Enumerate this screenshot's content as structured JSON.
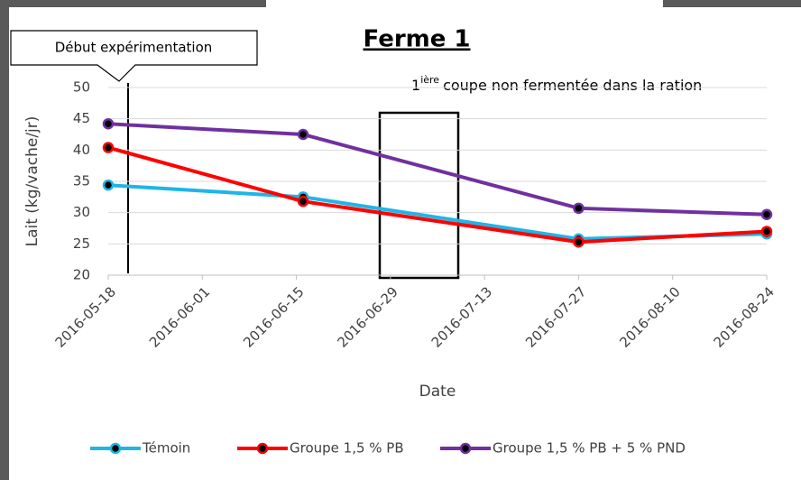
{
  "chart_data": {
    "type": "line",
    "title": "Ferme 1",
    "xlabel": "Date",
    "ylabel": "Lait (kg/vache/jr)",
    "annotations": {
      "start": "Début expérimentation",
      "cut_prefix": "1",
      "cut_superscript": "ière",
      "cut_text": "coupe non fermentée  dans la ration"
    },
    "x": [
      "2016-05-18",
      "2016-06-16",
      "2016-07-27",
      "2016-08-24"
    ],
    "xlim": [
      "2016-05-18",
      "2016-08-24"
    ],
    "xticks": [
      "2016-05-18",
      "2016-06-01",
      "2016-06-15",
      "2016-06-29",
      "2016-07-13",
      "2016-07-27",
      "2016-08-10",
      "2016-08-24"
    ],
    "ylim": [
      20,
      50
    ],
    "yticks": [
      20,
      25,
      30,
      35,
      40,
      45,
      50
    ],
    "grid": true,
    "legend": "bottom",
    "series": [
      {
        "name": "Témoin",
        "color": "#1fb5e6",
        "values": [
          34.4,
          32.5,
          25.8,
          26.6
        ]
      },
      {
        "name": "Groupe 1,5 % PB",
        "color": "#ff0000",
        "values": [
          40.4,
          31.8,
          25.3,
          27.0
        ]
      },
      {
        "name": "Groupe 1,5 % PB + 5 % PND",
        "color": "#7030a0",
        "values": [
          44.2,
          42.5,
          30.7,
          29.7
        ]
      }
    ]
  }
}
